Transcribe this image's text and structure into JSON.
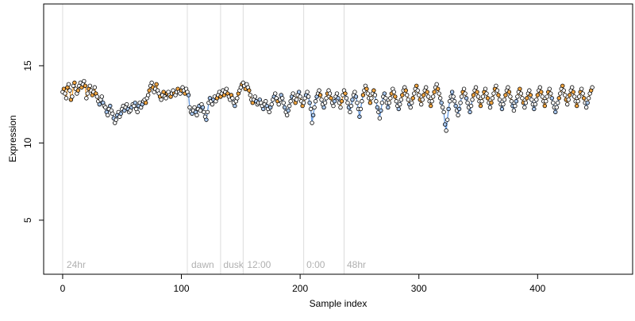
{
  "chart_data": {
    "type": "scatter",
    "title": "",
    "xlabel": "Sample index",
    "ylabel": "Expression",
    "xlim": [
      -16,
      480
    ],
    "ylim": [
      1.5,
      19
    ],
    "x_ticks": [
      0,
      100,
      200,
      300,
      400
    ],
    "y_ticks": [
      5,
      10,
      15
    ],
    "grid": false,
    "period_boundaries": [
      0,
      105,
      133,
      152,
      203,
      237
    ],
    "period_labels": [
      {
        "label": "24hr",
        "x": 2
      },
      {
        "label": "dawn",
        "x": 107
      },
      {
        "label": "dusk",
        "x": 134
      },
      {
        "label": "12:00",
        "x": 154
      },
      {
        "label": "0:00",
        "x": 204
      },
      {
        "label": "48hr",
        "x": 238
      }
    ],
    "colors": {
      "point_fill_default": "#ffffff",
      "point_fill_high": "#f5a742",
      "point_fill_low": "#a9c8f0",
      "point_stroke": "#000000",
      "fit_line_high": "#f5a742",
      "fit_line_low": "#6d9ee0",
      "boundary_line": "#dcdcdc",
      "label_color": "#b0b0b0"
    },
    "series": [
      {
        "name": "",
        "values": [
          13.3,
          13.5,
          13.2,
          12.9,
          13.6,
          13.8,
          13.4,
          12.8,
          13.0,
          13.7,
          13.9,
          13.5,
          13.2,
          13.4,
          13.7,
          13.9,
          13.6,
          13.8,
          14.0,
          13.7,
          12.9,
          13.2,
          13.5,
          13.7,
          13.4,
          13.1,
          13.3,
          13.6,
          13.2,
          13.0,
          12.7,
          12.5,
          12.8,
          13.0,
          12.6,
          12.4,
          12.3,
          12.0,
          11.8,
          12.2,
          12.4,
          12.1,
          11.9,
          11.6,
          11.3,
          11.5,
          11.8,
          12.0,
          11.7,
          11.9,
          12.2,
          12.4,
          12.1,
          12.3,
          12.5,
          12.2,
          12.0,
          12.1,
          12.3,
          12.5,
          12.4,
          12.6,
          12.2,
          12.0,
          12.4,
          12.6,
          12.3,
          12.5,
          12.7,
          12.8,
          12.6,
          12.9,
          13.1,
          13.4,
          13.7,
          13.9,
          13.6,
          13.3,
          13.5,
          13.8,
          13.4,
          13.2,
          13.0,
          12.8,
          13.1,
          13.3,
          13.0,
          12.9,
          13.2,
          13.3,
          13.1,
          13.0,
          13.2,
          13.4,
          13.2,
          13.1,
          13.3,
          13.5,
          13.3,
          13.2,
          13.4,
          13.6,
          13.4,
          13.2,
          13.5,
          13.3,
          13.1,
          12.3,
          12.0,
          11.9,
          12.1,
          12.3,
          12.0,
          11.8,
          12.2,
          12.4,
          12.1,
          12.5,
          12.3,
          12.0,
          11.7,
          11.5,
          12.0,
          12.6,
          12.9,
          12.7,
          12.5,
          12.8,
          13.0,
          12.7,
          12.9,
          13.1,
          13.3,
          13.0,
          13.2,
          13.4,
          13.1,
          13.3,
          13.5,
          13.2,
          13.0,
          12.8,
          13.1,
          12.9,
          12.6,
          12.4,
          12.7,
          12.9,
          13.2,
          13.4,
          13.6,
          13.8,
          13.9,
          13.7,
          13.5,
          13.8,
          13.6,
          13.4,
          13.1,
          12.8,
          12.6,
          12.8,
          13.0,
          12.7,
          12.5,
          12.6,
          12.8,
          12.6,
          12.4,
          12.2,
          12.5,
          12.7,
          12.4,
          12.2,
          12.0,
          12.3,
          12.5,
          12.8,
          13.0,
          13.2,
          12.9,
          12.7,
          12.5,
          12.8,
          13.1,
          12.9,
          12.6,
          12.3,
          12.0,
          11.8,
          12.1,
          12.4,
          12.7,
          13.0,
          13.2,
          12.9,
          12.6,
          12.8,
          13.1,
          13.3,
          13.0,
          12.7,
          12.4,
          12.6,
          12.9,
          13.1,
          13.3,
          13.0,
          12.6,
          12.2,
          11.3,
          11.8,
          12.3,
          12.7,
          13.0,
          13.2,
          13.4,
          13.1,
          12.8,
          12.5,
          12.3,
          12.6,
          12.9,
          13.2,
          13.4,
          13.2,
          12.9,
          12.6,
          12.4,
          12.7,
          13.0,
          13.2,
          12.9,
          12.6,
          12.3,
          12.7,
          13.1,
          13.4,
          13.2,
          12.9,
          12.6,
          12.3,
          12.0,
          12.4,
          12.8,
          13.1,
          13.3,
          13.0,
          12.6,
          12.2,
          11.7,
          12.2,
          12.7,
          13.1,
          13.4,
          13.7,
          13.5,
          13.2,
          12.9,
          12.6,
          12.9,
          13.2,
          13.4,
          13.1,
          12.7,
          12.3,
          12.0,
          11.6,
          12.1,
          12.6,
          13.0,
          13.2,
          12.9,
          12.6,
          12.3,
          12.6,
          12.9,
          13.2,
          13.5,
          13.3,
          13.0,
          12.7,
          12.4,
          12.2,
          12.5,
          12.8,
          13.1,
          13.4,
          13.6,
          13.4,
          13.1,
          12.8,
          12.5,
          12.3,
          12.6,
          12.9,
          13.2,
          13.5,
          13.7,
          13.4,
          13.1,
          12.8,
          12.5,
          12.8,
          13.1,
          13.4,
          13.6,
          13.3,
          13.0,
          12.7,
          12.4,
          12.7,
          13.0,
          13.3,
          13.6,
          13.8,
          13.5,
          13.2,
          12.9,
          12.6,
          12.3,
          12.0,
          11.2,
          10.8,
          11.5,
          12.2,
          12.7,
          13.0,
          13.3,
          13.0,
          12.7,
          12.4,
          12.1,
          11.8,
          12.2,
          12.6,
          13.0,
          13.3,
          13.5,
          13.2,
          12.9,
          12.6,
          12.3,
          12.0,
          12.4,
          12.8,
          13.1,
          13.4,
          13.6,
          13.3,
          13.0,
          12.7,
          12.4,
          12.7,
          13.0,
          13.3,
          13.5,
          13.2,
          12.9,
          12.6,
          12.3,
          12.6,
          12.9,
          13.2,
          13.5,
          13.7,
          13.4,
          13.1,
          12.8,
          12.5,
          12.2,
          12.5,
          12.8,
          13.1,
          13.4,
          13.6,
          13.3,
          13.0,
          12.7,
          12.4,
          12.1,
          12.4,
          12.7,
          13.0,
          13.3,
          13.5,
          13.2,
          12.9,
          12.6,
          12.3,
          12.6,
          12.9,
          13.2,
          13.4,
          13.1,
          12.8,
          12.5,
          12.2,
          12.5,
          12.8,
          13.1,
          13.4,
          13.6,
          13.3,
          13.0,
          12.7,
          12.4,
          12.7,
          13.0,
          13.3,
          13.5,
          13.2,
          12.9,
          12.6,
          12.3,
          12.0,
          12.3,
          12.6,
          12.9,
          13.2,
          13.5,
          13.7,
          13.4,
          13.1,
          12.8,
          12.5,
          12.8,
          13.1,
          13.4,
          13.6,
          13.3,
          13.0,
          12.7,
          12.4,
          12.7,
          13.0,
          13.3,
          13.5,
          13.2,
          12.9,
          12.6,
          12.3,
          12.6,
          12.9,
          13.2,
          13.4,
          13.6
        ]
      }
    ]
  }
}
